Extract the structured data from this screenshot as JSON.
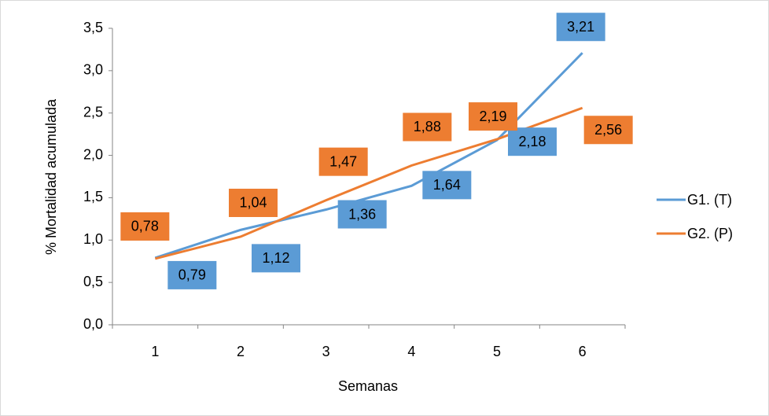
{
  "chart_data": {
    "type": "line",
    "x_label": "Semanas",
    "y_label": "% Mortalidad acumulada",
    "categories": [
      "1",
      "2",
      "3",
      "4",
      "5",
      "6"
    ],
    "series": [
      {
        "name": "G1. (T)",
        "color": "#5b9bd5",
        "values": [
          0.79,
          1.12,
          1.36,
          1.64,
          2.18,
          3.21
        ],
        "value_labels": [
          "0,79",
          "1,12",
          "1,36",
          "1,64",
          "2,18",
          "3,21"
        ]
      },
      {
        "name": "G2. (P)",
        "color": "#ed7d31",
        "values": [
          0.78,
          1.04,
          1.47,
          1.88,
          2.19,
          2.56
        ],
        "value_labels": [
          "0,78",
          "1,04",
          "1,47",
          "1,88",
          "2,19",
          "2,56"
        ]
      }
    ],
    "ylim": [
      0,
      3.5
    ],
    "yticks": [
      {
        "value": 0,
        "label": "0,0"
      },
      {
        "value": 0.5,
        "label": "0,5"
      },
      {
        "value": 1,
        "label": "1,0"
      },
      {
        "value": 1.5,
        "label": "1,5"
      },
      {
        "value": 2,
        "label": "2,0"
      },
      {
        "value": 2.5,
        "label": "2,5"
      },
      {
        "value": 3,
        "label": "3,0"
      },
      {
        "value": 3.5,
        "label": "3,5"
      }
    ],
    "grid": false,
    "legend": "right"
  }
}
